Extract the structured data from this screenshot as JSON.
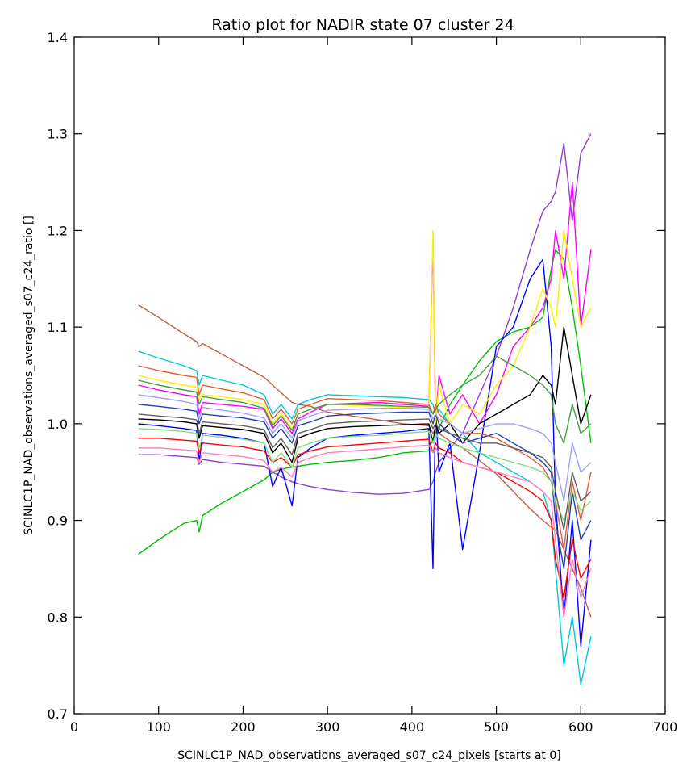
{
  "chart_data": {
    "type": "line",
    "title": "Ratio plot for NADIR state 07 cluster 24",
    "xlabel": "SCINLC1P_NAD_observations_averaged_s07_c24_pixels [starts at 0]",
    "ylabel": "SCINLC1P_NAD_observations_averaged_s07_c24_ratio []",
    "xlim": [
      0,
      700
    ],
    "ylim": [
      0.7,
      1.4
    ],
    "x_ticks": [
      "0",
      "100",
      "200",
      "300",
      "400",
      "500",
      "600",
      "700"
    ],
    "y_ticks": [
      "0.7",
      "0.8",
      "0.9",
      "1.0",
      "1.1",
      "1.2",
      "1.3",
      "1.4"
    ],
    "grid": false,
    "x": [
      76,
      100,
      130,
      145,
      148,
      152,
      175,
      200,
      225,
      235,
      245,
      258,
      265,
      280,
      300,
      330,
      360,
      390,
      420,
      425,
      428,
      432,
      445,
      460,
      480,
      500,
      520,
      540,
      555,
      565,
      570,
      580,
      590,
      600,
      612
    ],
    "series": [
      {
        "color": "#c0604a",
        "values": [
          1.123,
          1.11,
          1.093,
          1.085,
          1.08,
          1.083,
          1.072,
          1.06,
          1.048,
          1.04,
          1.032,
          1.022,
          1.02,
          1.018,
          1.012,
          1.008,
          1.004,
          1.0,
          0.998,
          0.99,
          0.995,
          0.99,
          0.982,
          0.975,
          0.962,
          0.948,
          0.93,
          0.912,
          0.9,
          0.893,
          0.89,
          0.87,
          0.85,
          0.83,
          0.8
        ]
      },
      {
        "color": "#00c000",
        "values": [
          0.865,
          0.88,
          0.897,
          0.9,
          0.888,
          0.905,
          0.918,
          0.93,
          0.942,
          0.95,
          0.953,
          0.955,
          0.956,
          0.958,
          0.96,
          0.962,
          0.965,
          0.97,
          0.972,
          0.985,
          0.99,
          0.995,
          1.02,
          1.04,
          1.065,
          1.085,
          1.095,
          1.1,
          1.11,
          1.16,
          1.18,
          1.17,
          1.12,
          1.06,
          0.98
        ]
      },
      {
        "color": "#9040d0",
        "values": [
          0.968,
          0.968,
          0.966,
          0.965,
          0.958,
          0.963,
          0.96,
          0.958,
          0.956,
          0.95,
          0.945,
          0.94,
          0.938,
          0.935,
          0.932,
          0.929,
          0.927,
          0.928,
          0.932,
          0.94,
          0.95,
          0.96,
          0.975,
          0.99,
          1.03,
          1.07,
          1.12,
          1.18,
          1.22,
          1.23,
          1.24,
          1.29,
          1.21,
          1.28,
          1.3
        ]
      },
      {
        "color": "#0000ff",
        "values": [
          1.0,
          0.998,
          0.995,
          0.993,
          0.96,
          0.99,
          0.988,
          0.985,
          0.98,
          0.935,
          0.955,
          0.915,
          0.965,
          0.975,
          0.985,
          0.988,
          0.99,
          0.992,
          0.995,
          0.85,
          1.02,
          0.95,
          0.98,
          0.87,
          0.97,
          1.08,
          1.1,
          1.15,
          1.17,
          1.08,
          0.92,
          0.8,
          0.9,
          0.77,
          0.88
        ]
      },
      {
        "color": "#ff00ff",
        "values": [
          1.04,
          1.035,
          1.03,
          1.028,
          1.01,
          1.022,
          1.02,
          1.018,
          1.015,
          0.995,
          1.005,
          0.99,
          1.005,
          1.012,
          1.02,
          1.021,
          1.022,
          1.02,
          1.018,
          1.19,
          1.0,
          1.05,
          1.01,
          1.03,
          1.0,
          1.03,
          1.08,
          1.1,
          1.12,
          1.15,
          1.2,
          1.15,
          1.25,
          1.1,
          1.18
        ]
      },
      {
        "color": "#00c8e0",
        "values": [
          1.075,
          1.068,
          1.06,
          1.055,
          1.04,
          1.05,
          1.045,
          1.04,
          1.03,
          1.01,
          1.02,
          1.005,
          1.02,
          1.025,
          1.03,
          1.029,
          1.028,
          1.027,
          1.025,
          1.02,
          1.01,
          1.015,
          1.0,
          0.99,
          0.97,
          0.96,
          0.95,
          0.94,
          0.93,
          0.9,
          0.85,
          0.75,
          0.8,
          0.73,
          0.78
        ]
      },
      {
        "color": "#ffee00",
        "values": [
          1.05,
          1.045,
          1.04,
          1.038,
          1.025,
          1.03,
          1.028,
          1.025,
          1.02,
          1.0,
          1.01,
          0.995,
          1.01,
          1.015,
          1.02,
          1.019,
          1.018,
          1.017,
          1.015,
          1.2,
          1.0,
          1.04,
          1.0,
          1.02,
          1.01,
          1.04,
          1.06,
          1.1,
          1.14,
          1.12,
          1.1,
          1.2,
          1.15,
          1.1,
          1.12
        ]
      },
      {
        "color": "#ff0000",
        "values": [
          0.985,
          0.985,
          0.983,
          0.982,
          0.97,
          0.98,
          0.978,
          0.976,
          0.972,
          0.96,
          0.965,
          0.955,
          0.968,
          0.972,
          0.976,
          0.978,
          0.98,
          0.982,
          0.984,
          0.97,
          0.98,
          0.975,
          0.97,
          0.96,
          0.955,
          0.95,
          0.94,
          0.93,
          0.92,
          0.9,
          0.86,
          0.82,
          0.88,
          0.84,
          0.86
        ]
      },
      {
        "color": "#000000",
        "values": [
          1.005,
          1.004,
          1.002,
          1.0,
          0.985,
          0.998,
          0.996,
          0.994,
          0.99,
          0.97,
          0.98,
          0.96,
          0.985,
          0.99,
          0.995,
          0.997,
          0.998,
          0.999,
          1.0,
          0.98,
          1.0,
          0.99,
          1.0,
          0.98,
          1.0,
          1.01,
          1.02,
          1.03,
          1.05,
          1.04,
          1.02,
          1.1,
          1.05,
          1.0,
          1.03
        ]
      },
      {
        "color": "#2040b0",
        "values": [
          1.02,
          1.018,
          1.015,
          1.013,
          1.0,
          1.01,
          1.008,
          1.006,
          1.002,
          0.985,
          0.995,
          0.98,
          0.998,
          1.002,
          1.008,
          1.01,
          1.011,
          1.012,
          1.012,
          1.0,
          1.01,
          1.0,
          0.99,
          0.98,
          0.985,
          0.99,
          0.98,
          0.97,
          0.96,
          0.95,
          0.9,
          0.85,
          0.93,
          0.88,
          0.9
        ]
      },
      {
        "color": "#e06030",
        "values": [
          1.06,
          1.055,
          1.05,
          1.048,
          1.03,
          1.04,
          1.036,
          1.032,
          1.025,
          1.005,
          1.015,
          1.0,
          1.015,
          1.02,
          1.026,
          1.025,
          1.024,
          1.022,
          1.02,
          1.01,
          1.02,
          1.01,
          1.0,
          0.99,
          0.99,
          0.985,
          0.975,
          0.965,
          0.955,
          0.94,
          0.92,
          0.87,
          0.94,
          0.9,
          0.95
        ]
      },
      {
        "color": "#80e080",
        "values": [
          0.995,
          0.994,
          0.992,
          0.99,
          0.975,
          0.988,
          0.986,
          0.984,
          0.98,
          0.96,
          0.97,
          0.955,
          0.975,
          0.98,
          0.985,
          0.987,
          0.988,
          0.99,
          0.992,
          0.98,
          0.99,
          0.985,
          0.98,
          0.975,
          0.97,
          0.965,
          0.96,
          0.955,
          0.95,
          0.94,
          0.92,
          0.9,
          0.93,
          0.91,
          0.92
        ]
      },
      {
        "color": "#a0a0ff",
        "values": [
          1.03,
          1.027,
          1.023,
          1.02,
          1.005,
          1.017,
          1.014,
          1.011,
          1.006,
          0.99,
          1.0,
          0.985,
          1.003,
          1.008,
          1.014,
          1.015,
          1.016,
          1.016,
          1.015,
          1.005,
          1.01,
          1.005,
          1.0,
          0.99,
          0.995,
          1.0,
          1.0,
          0.995,
          0.99,
          0.98,
          0.96,
          0.92,
          0.98,
          0.95,
          0.96
        ]
      },
      {
        "color": "#606060",
        "values": [
          1.01,
          1.008,
          1.006,
          1.004,
          0.99,
          1.002,
          1.0,
          0.998,
          0.994,
          0.975,
          0.985,
          0.968,
          0.99,
          0.994,
          1.0,
          1.002,
          1.003,
          1.004,
          1.005,
          0.995,
          1.0,
          0.995,
          0.99,
          0.985,
          0.98,
          0.98,
          0.975,
          0.97,
          0.965,
          0.955,
          0.93,
          0.89,
          0.95,
          0.92,
          0.93
        ]
      },
      {
        "color": "#40a040",
        "values": [
          1.045,
          1.04,
          1.035,
          1.033,
          1.02,
          1.028,
          1.025,
          1.022,
          1.016,
          0.998,
          1.008,
          0.993,
          1.01,
          1.015,
          1.02,
          1.02,
          1.019,
          1.018,
          1.017,
          1.01,
          1.015,
          1.02,
          1.03,
          1.04,
          1.05,
          1.07,
          1.06,
          1.05,
          1.04,
          1.03,
          1.0,
          0.98,
          1.02,
          0.99,
          1.0
        ]
      },
      {
        "color": "#ff80c0",
        "values": [
          0.975,
          0.975,
          0.973,
          0.972,
          0.96,
          0.97,
          0.968,
          0.966,
          0.962,
          0.95,
          0.955,
          0.945,
          0.96,
          0.965,
          0.97,
          0.972,
          0.974,
          0.976,
          0.978,
          0.97,
          0.975,
          0.97,
          0.965,
          0.96,
          0.955,
          0.95,
          0.945,
          0.94,
          0.93,
          0.92,
          0.88,
          0.8,
          0.86,
          0.82,
          0.85
        ]
      }
    ]
  }
}
